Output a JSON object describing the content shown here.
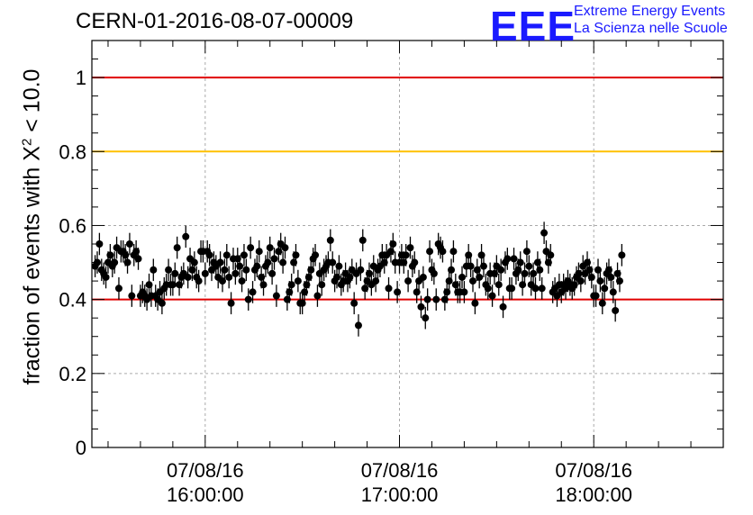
{
  "title": "CERN-01-2016-08-07-00009",
  "logo": {
    "mark": "EEE",
    "line1": "Extreme Energy Events",
    "line2": "La Scienza nelle Scuole"
  },
  "ylabel": {
    "prefix": "fraction of events with ",
    "symbol": "X",
    "sup": "2",
    "suffix": " < 10.0"
  },
  "chart_data": {
    "type": "scatter",
    "title": "CERN-01-2016-08-07-00009",
    "xlabel": "",
    "ylabel": "fraction of events with X² < 10.0",
    "x_axis": "time",
    "xlim": [
      "2016-08-07 15:25:00",
      "2016-08-07 18:40:00"
    ],
    "ylim": [
      0,
      1.1
    ],
    "grid": true,
    "x_ticks": [
      {
        "date": "07/08/16",
        "time": "16:00:00",
        "value": "2016-08-07 16:00:00"
      },
      {
        "date": "07/08/16",
        "time": "17:00:00",
        "value": "2016-08-07 17:00:00"
      },
      {
        "date": "07/08/16",
        "time": "18:00:00",
        "value": "2016-08-07 18:00:00"
      }
    ],
    "y_ticks": [
      {
        "label": "0",
        "value": 0
      },
      {
        "label": "0.2",
        "value": 0.2
      },
      {
        "label": "0.4",
        "value": 0.4
      },
      {
        "label": "0.6",
        "value": 0.6
      },
      {
        "label": "0.8",
        "value": 0.8
      },
      {
        "label": "1",
        "value": 1.0
      }
    ],
    "reference_lines": [
      {
        "y": 1.0,
        "color": "#e00000"
      },
      {
        "y": 0.8,
        "color": "#ffc000"
      },
      {
        "y": 0.4,
        "color": "#e00000"
      }
    ],
    "series": [
      {
        "marker_color": "#000000",
        "error": 0.03,
        "x_start": "2016-08-07 15:26:00",
        "x_step_seconds": 40,
        "y": [
          0.49,
          0.5,
          0.55,
          0.48,
          0.47,
          0.46,
          0.5,
          0.52,
          0.49,
          0.5,
          0.54,
          0.43,
          0.53,
          0.53,
          0.52,
          0.5,
          0.55,
          0.41,
          0.52,
          0.53,
          0.51,
          0.41,
          0.42,
          0.41,
          0.4,
          0.44,
          0.41,
          0.48,
          0.41,
          0.4,
          0.42,
          0.39,
          0.43,
          0.44,
          0.48,
          0.44,
          0.44,
          0.47,
          0.54,
          0.44,
          0.46,
          0.47,
          0.57,
          0.46,
          0.51,
          0.48,
          0.5,
          0.46,
          0.45,
          0.53,
          0.53,
          0.47,
          0.53,
          0.52,
          0.48,
          0.5,
          0.49,
          0.46,
          0.5,
          0.45,
          0.48,
          0.52,
          0.46,
          0.39,
          0.51,
          0.47,
          0.51,
          0.49,
          0.45,
          0.52,
          0.48,
          0.4,
          0.54,
          0.42,
          0.48,
          0.49,
          0.53,
          0.46,
          0.44,
          0.49,
          0.5,
          0.54,
          0.47,
          0.51,
          0.41,
          0.53,
          0.55,
          0.5,
          0.54,
          0.4,
          0.42,
          0.44,
          0.5,
          0.52,
          0.45,
          0.39,
          0.39,
          0.42,
          0.44,
          0.46,
          0.48,
          0.51,
          0.52,
          0.41,
          0.47,
          0.44,
          0.48,
          0.49,
          0.5,
          0.56,
          0.5,
          0.45,
          0.46,
          0.49,
          0.44,
          0.45,
          0.47,
          0.45,
          0.46,
          0.48,
          0.39,
          0.47,
          0.33,
          0.48,
          0.56,
          0.43,
          0.45,
          0.47,
          0.44,
          0.49,
          0.45,
          0.48,
          0.49,
          0.52,
          0.5,
          0.52,
          0.43,
          0.53,
          0.55,
          0.5,
          0.42,
          0.5,
          0.52,
          0.5,
          0.52,
          0.45,
          0.54,
          0.49,
          0.5,
          0.42,
          0.45,
          0.38,
          0.46,
          0.35,
          0.4,
          0.53,
          0.48,
          0.47,
          0.4,
          0.55,
          0.54,
          0.53,
          0.4,
          0.42,
          0.45,
          0.48,
          0.53,
          0.44,
          0.42,
          0.42,
          0.46,
          0.42,
          0.49,
          0.52,
          0.49,
          0.45,
          0.39,
          0.48,
          0.46,
          0.52,
          0.49,
          0.44,
          0.43,
          0.47,
          0.41,
          0.47,
          0.49,
          0.44,
          0.48,
          0.38,
          0.5,
          0.51,
          0.43,
          0.43,
          0.51,
          0.47,
          0.48,
          0.5,
          0.44,
          0.47,
          0.53,
          0.49,
          0.44,
          0.47,
          0.43,
          0.5,
          0.48,
          0.43,
          0.58,
          0.53,
          0.5,
          0.52,
          0.42,
          0.43,
          0.41,
          0.44,
          0.42,
          0.44,
          0.43,
          0.45,
          0.44,
          0.43,
          0.44,
          0.46,
          0.47,
          0.45,
          0.49,
          0.47,
          0.5,
          0.48,
          0.46,
          0.41,
          0.41,
          0.48,
          0.45,
          0.39,
          0.43,
          0.47,
          0.48,
          0.46,
          0.42,
          0.37,
          0.47,
          0.45,
          0.52
        ]
      }
    ]
  }
}
